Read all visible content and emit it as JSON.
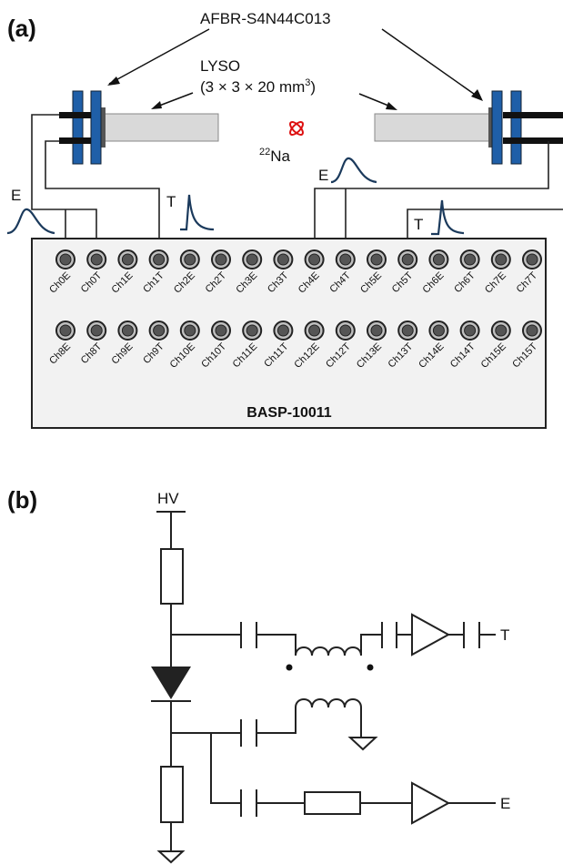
{
  "panel_a": {
    "label": "(a)",
    "sensor": "AFBR-S4N44C013",
    "crystal": {
      "name": "LYSO",
      "dims": "(3 × 3 × 20 mm",
      "dims_sup": "3",
      "dims_end": ")"
    },
    "source": {
      "mass": "22",
      "element": "Na"
    },
    "signals": [
      "E",
      "T",
      "E",
      "T"
    ],
    "channels_row1": [
      "Ch0E",
      "Ch0T",
      "Ch1E",
      "Ch1T",
      "Ch2E",
      "Ch2T",
      "Ch3E",
      "Ch3T",
      "Ch4E",
      "Ch4T",
      "Ch5E",
      "Ch5T",
      "Ch6E",
      "Ch6T",
      "Ch7E",
      "Ch7T"
    ],
    "channels_row2": [
      "Ch8E",
      "Ch8T",
      "Ch9E",
      "Ch9T",
      "Ch10E",
      "Ch10T",
      "Ch11E",
      "Ch11T",
      "Ch12E",
      "Ch12T",
      "Ch13E",
      "Ch13T",
      "Ch14E",
      "Ch14T",
      "Ch15E",
      "Ch15T"
    ],
    "board": "BASP-10011"
  },
  "panel_b": {
    "label": "(b)",
    "hv": "HV",
    "out_t": "T",
    "out_e": "E"
  }
}
